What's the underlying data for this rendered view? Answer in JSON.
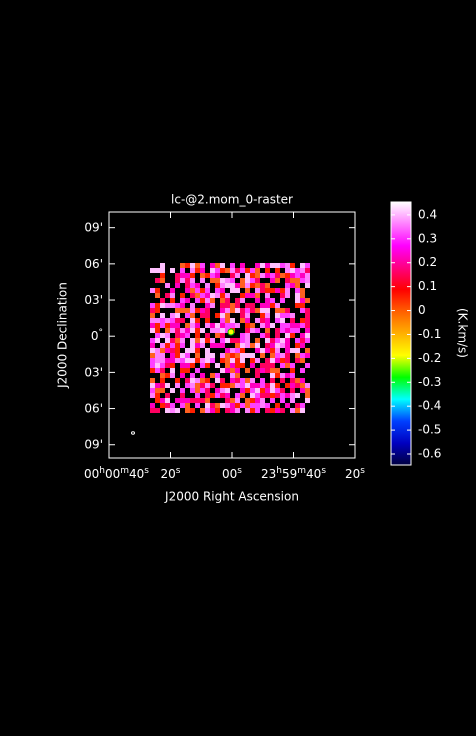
{
  "chart_data": {
    "type": "image",
    "title": "lc-@2.mom_0-raster",
    "xlabel": "J2000 Right Ascension",
    "ylabel": "J2000 Declination",
    "xlim": [
      40,
      -40
    ],
    "xticks": [
      {
        "value": 40,
        "label": "00h00m40s"
      },
      {
        "value": 20,
        "label": "20s"
      },
      {
        "value": 0,
        "label": "00s"
      },
      {
        "value": -20,
        "label": "23h59m40s"
      },
      {
        "value": -40,
        "label": "20s"
      }
    ],
    "ylim": [
      -10.1,
      10.3
    ],
    "yticks": [
      {
        "value": 9,
        "label": "09'"
      },
      {
        "value": 6,
        "label": "06'"
      },
      {
        "value": 3,
        "label": "03'"
      },
      {
        "value": 0,
        "label": "0°"
      },
      {
        "value": -3,
        "label": "03'"
      },
      {
        "value": -6,
        "label": "06'"
      },
      {
        "value": -9,
        "label": "09'"
      }
    ],
    "colorbar": {
      "label": "(K.km/s)",
      "lim": [
        -0.646,
        0.454
      ],
      "ticks": [
        0.4,
        0.3,
        0.2,
        0.1,
        0,
        -0.1,
        -0.2,
        -0.3,
        -0.4,
        -0.5,
        -0.6
      ],
      "colormap": [
        "#ffffff",
        "#ff80ff",
        "#ff00ff",
        "#ff0080",
        "#ff0000",
        "#ff6000",
        "#ffb000",
        "#ffff00",
        "#00ff00",
        "#00ffff",
        "#0040ff",
        "#0000c0",
        "#000040"
      ]
    }
  }
}
